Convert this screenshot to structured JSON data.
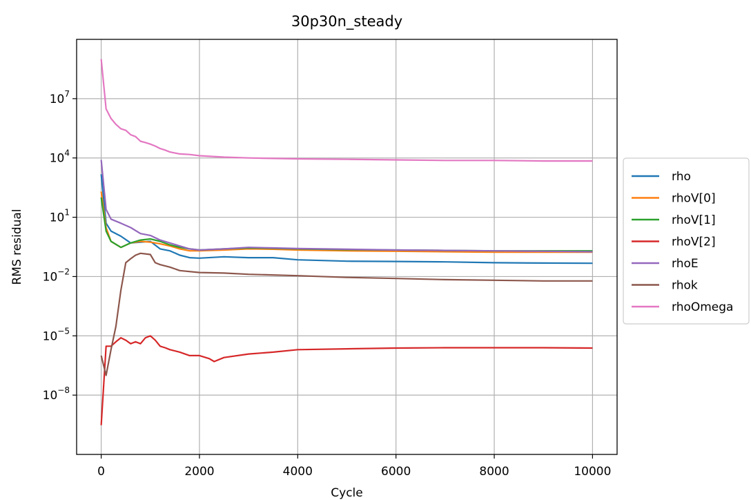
{
  "chart_data": {
    "type": "line",
    "title": "30p30n_steady",
    "xlabel": "Cycle",
    "ylabel": "RMS residual",
    "yscale": "log",
    "xlim": [
      -500,
      10500
    ],
    "ylim": [
      1e-11,
      10000000000.0
    ],
    "xticks": [
      "0",
      "2000",
      "4000",
      "6000",
      "8000",
      "10000"
    ],
    "yticks": [
      {
        "base": "10",
        "exp": "7",
        "value": 10000000.0
      },
      {
        "base": "10",
        "exp": "4",
        "value": 10000.0
      },
      {
        "base": "10",
        "exp": "1",
        "value": 10.0
      },
      {
        "base": "10",
        "exp": "−2",
        "value": 0.01
      },
      {
        "base": "10",
        "exp": "−5",
        "value": 1e-05
      },
      {
        "base": "10",
        "exp": "−8",
        "value": 1e-08
      }
    ],
    "grid": true,
    "legend_position": "right",
    "series": [
      {
        "name": "rho",
        "color": "#1f77b4",
        "x": [
          0,
          100,
          200,
          400,
          600,
          800,
          1000,
          1200,
          1400,
          1600,
          1800,
          2000,
          2500,
          3000,
          3500,
          4000,
          5000,
          6000,
          7000,
          8000,
          9000,
          10000
        ],
        "y": [
          1500,
          5,
          2,
          1.1,
          0.5,
          0.55,
          0.6,
          0.25,
          0.2,
          0.12,
          0.09,
          0.085,
          0.1,
          0.09,
          0.09,
          0.07,
          0.06,
          0.058,
          0.055,
          0.05,
          0.048,
          0.047
        ]
      },
      {
        "name": "rhoV[0]",
        "color": "#ff7f0e",
        "x": [
          0,
          100,
          200,
          400,
          600,
          800,
          1000,
          1200,
          1400,
          1600,
          1800,
          2000,
          2500,
          3000,
          3500,
          4000,
          5000,
          6000,
          7000,
          8000,
          9000,
          10000
        ],
        "y": [
          200,
          3,
          0.6,
          0.3,
          0.5,
          0.6,
          0.55,
          0.45,
          0.35,
          0.25,
          0.2,
          0.2,
          0.22,
          0.25,
          0.24,
          0.22,
          0.2,
          0.19,
          0.18,
          0.17,
          0.17,
          0.17
        ]
      },
      {
        "name": "rhoV[1]",
        "color": "#2ca02c",
        "x": [
          0,
          100,
          200,
          400,
          600,
          800,
          1000,
          1200,
          1400,
          1600,
          1800,
          2000,
          2500,
          3000,
          3500,
          4000,
          5000,
          6000,
          7000,
          8000,
          9000,
          10000
        ],
        "y": [
          100,
          2,
          0.6,
          0.3,
          0.5,
          0.7,
          0.8,
          0.6,
          0.4,
          0.3,
          0.25,
          0.22,
          0.25,
          0.28,
          0.27,
          0.25,
          0.23,
          0.22,
          0.21,
          0.2,
          0.2,
          0.2
        ]
      },
      {
        "name": "rhoV[2]",
        "color": "#d62728",
        "x": [
          0,
          100,
          200,
          300,
          400,
          500,
          600,
          700,
          800,
          900,
          1000,
          1100,
          1200,
          1300,
          1400,
          1600,
          1800,
          2000,
          2200,
          2300,
          2500,
          3000,
          3500,
          4000,
          5000,
          6000,
          7000,
          8000,
          9000,
          10000
        ],
        "y": [
          3e-10,
          3e-06,
          3e-06,
          5e-06,
          8e-06,
          6e-06,
          4e-06,
          5e-06,
          4e-06,
          8e-06,
          1e-05,
          6e-06,
          3e-06,
          2.5e-06,
          2e-06,
          1.5e-06,
          1e-06,
          1e-06,
          7e-07,
          5e-07,
          8e-07,
          1.2e-06,
          1.5e-06,
          2e-06,
          2.2e-06,
          2.4e-06,
          2.5e-06,
          2.5e-06,
          2.5e-06,
          2.4e-06
        ]
      },
      {
        "name": "rhoE",
        "color": "#9467bd",
        "x": [
          0,
          100,
          200,
          400,
          600,
          800,
          1000,
          1200,
          1400,
          1600,
          1800,
          2000,
          2500,
          3000,
          3500,
          4000,
          5000,
          6000,
          7000,
          8000,
          9000,
          10000
        ],
        "y": [
          8000,
          25,
          8,
          5,
          3,
          1.5,
          1.2,
          0.7,
          0.5,
          0.35,
          0.25,
          0.22,
          0.25,
          0.3,
          0.28,
          0.26,
          0.24,
          0.22,
          0.21,
          0.2,
          0.19,
          0.18
        ]
      },
      {
        "name": "rhok",
        "color": "#8c564b",
        "x": [
          0,
          100,
          200,
          300,
          400,
          500,
          600,
          700,
          800,
          900,
          1000,
          1100,
          1200,
          1400,
          1600,
          2000,
          2500,
          3000,
          4000,
          5000,
          6000,
          7000,
          8000,
          9000,
          10000
        ],
        "y": [
          1e-06,
          1e-07,
          2e-06,
          3e-05,
          0.002,
          0.05,
          0.08,
          0.12,
          0.15,
          0.14,
          0.13,
          0.05,
          0.04,
          0.03,
          0.02,
          0.016,
          0.015,
          0.013,
          0.011,
          0.009,
          0.008,
          0.007,
          0.0065,
          0.006,
          0.006
        ]
      },
      {
        "name": "rhoOmega",
        "color": "#e377c2",
        "x": [
          0,
          100,
          200,
          300,
          400,
          500,
          600,
          700,
          800,
          900,
          1000,
          1100,
          1200,
          1300,
          1400,
          1600,
          1800,
          2000,
          2500,
          3000,
          3500,
          4000,
          5000,
          6000,
          7000,
          8000,
          9000,
          10000
        ],
        "y": [
          1000000000.0,
          3000000.0,
          1000000.0,
          500000.0,
          300000.0,
          250000.0,
          150000.0,
          120000.0,
          70000.0,
          60000.0,
          50000.0,
          40000.0,
          30000.0,
          25000.0,
          20000.0,
          16000.0,
          15000.0,
          13000.0,
          11000.0,
          10000.0,
          9500.0,
          9000.0,
          8500.0,
          8000.0,
          7500.0,
          7500.0,
          7000.0,
          7000.0
        ]
      }
    ]
  }
}
